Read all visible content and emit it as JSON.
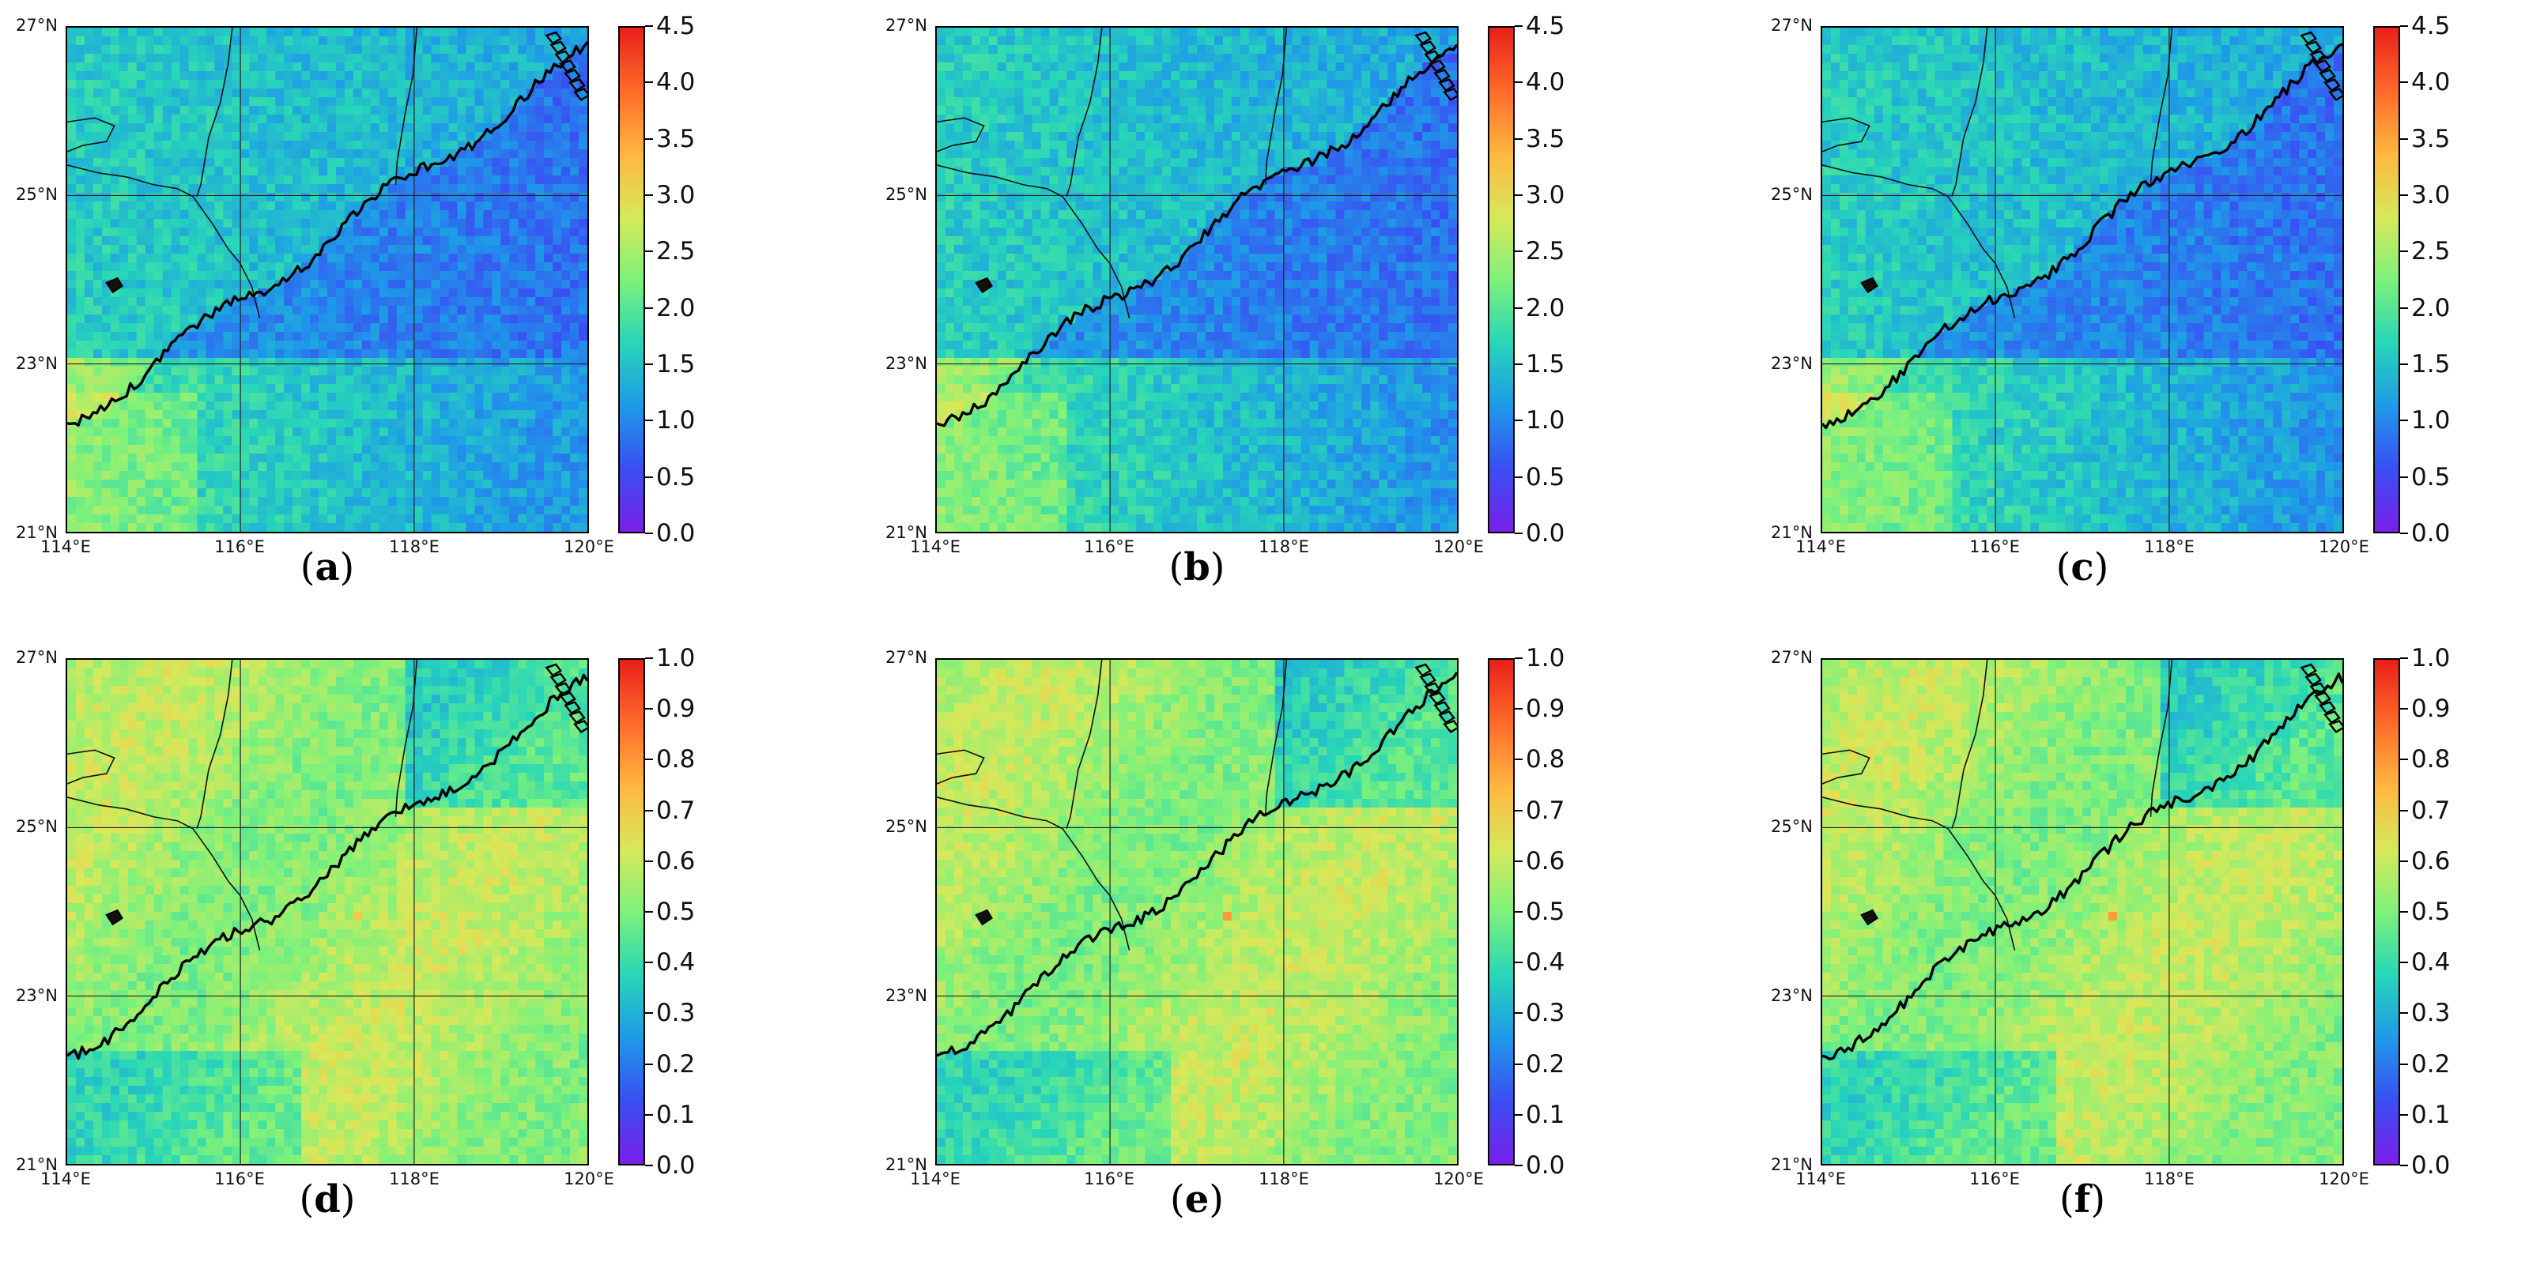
{
  "colorbar_ramp": [
    "#7a1fe8",
    "#3a4ff2",
    "#1e9ae8",
    "#28d6b8",
    "#7ef17a",
    "#d8e85a",
    "#ffb640",
    "#ff6a2a",
    "#e8201a"
  ],
  "lat_labels": [
    "27°N",
    "25°N",
    "23°N",
    "21°N"
  ],
  "lon_labels": [
    "114°E",
    "116°E",
    "118°E",
    "120°E"
  ],
  "panels": [
    {
      "letter": "a",
      "open": "(",
      "close": ")",
      "scale": "top",
      "seed": 11,
      "colorbar": {
        "min": 0.0,
        "max": 4.5,
        "ticks": [
          "0.0",
          "0.5",
          "1.0",
          "1.5",
          "2.0",
          "2.5",
          "3.0",
          "3.5",
          "4.0",
          "4.5"
        ]
      }
    },
    {
      "letter": "b",
      "open": "(",
      "close": ")",
      "scale": "top",
      "seed": 23,
      "colorbar": {
        "min": 0.0,
        "max": 4.5,
        "ticks": [
          "0.0",
          "0.5",
          "1.0",
          "1.5",
          "2.0",
          "2.5",
          "3.0",
          "3.5",
          "4.0",
          "4.5"
        ]
      }
    },
    {
      "letter": "c",
      "open": "(",
      "close": ")",
      "scale": "top",
      "seed": 37,
      "colorbar": {
        "min": 0.0,
        "max": 4.5,
        "ticks": [
          "0.0",
          "0.5",
          "1.0",
          "1.5",
          "2.0",
          "2.5",
          "3.0",
          "3.5",
          "4.0",
          "4.5"
        ]
      }
    },
    {
      "letter": "d",
      "open": "(",
      "close": ")",
      "scale": "bottom",
      "seed": 41,
      "colorbar": {
        "min": 0.0,
        "max": 1.0,
        "ticks": [
          "0.0",
          "0.1",
          "0.2",
          "0.3",
          "0.4",
          "0.5",
          "0.6",
          "0.7",
          "0.8",
          "0.9",
          "1.0"
        ]
      }
    },
    {
      "letter": "e",
      "open": "(",
      "close": ")",
      "scale": "bottom",
      "seed": 53,
      "colorbar": {
        "min": 0.0,
        "max": 1.0,
        "ticks": [
          "0.0",
          "0.1",
          "0.2",
          "0.3",
          "0.4",
          "0.5",
          "0.6",
          "0.7",
          "0.8",
          "0.9",
          "1.0"
        ]
      }
    },
    {
      "letter": "f",
      "open": "(",
      "close": ")",
      "scale": "bottom",
      "seed": 67,
      "colorbar": {
        "min": 0.0,
        "max": 1.0,
        "ticks": [
          "0.0",
          "0.1",
          "0.2",
          "0.3",
          "0.4",
          "0.5",
          "0.6",
          "0.7",
          "0.8",
          "0.9",
          "1.0"
        ]
      }
    }
  ]
}
